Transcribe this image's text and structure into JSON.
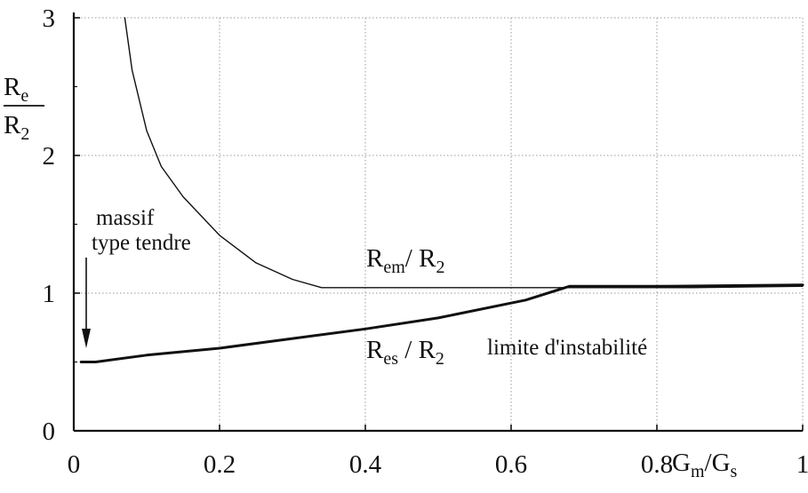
{
  "chart_data": {
    "type": "line",
    "xlim": [
      0,
      1
    ],
    "ylim": [
      0,
      3
    ],
    "x_ticks": [
      "0",
      "0.2",
      "0.4",
      "0.6",
      "0.8",
      "1"
    ],
    "y_ticks": [
      "0",
      "1",
      "2",
      "3"
    ],
    "grid": true,
    "xlabel": {
      "a": "G",
      "a_sub": "m",
      "sep": "/",
      "b": "G",
      "b_sub": "s"
    },
    "ylabel": {
      "num": "R",
      "num_sub": "e",
      "den": "R",
      "den_sub": "2"
    },
    "series": [
      {
        "name": "R_em / R2",
        "label": {
          "a": "R",
          "a_sub": "em",
          "sep": "/ ",
          "b": "R",
          "b_sub": "2"
        },
        "stroke_width": 1.4,
        "x": [
          0.07,
          0.08,
          0.1,
          0.12,
          0.15,
          0.2,
          0.25,
          0.3,
          0.34,
          0.5,
          0.7,
          0.85,
          1.0
        ],
        "y": [
          3.0,
          2.62,
          2.18,
          1.92,
          1.7,
          1.42,
          1.22,
          1.1,
          1.04,
          1.04,
          1.04,
          1.04,
          1.05
        ]
      },
      {
        "name": "R_es / R2",
        "label": {
          "a": "R",
          "a_sub": "es",
          "sep": " / ",
          "b": "R",
          "b_sub": "2",
          "extra": "limite d'instabilité"
        },
        "stroke_width": 3,
        "x": [
          0.01,
          0.03,
          0.1,
          0.2,
          0.3,
          0.4,
          0.5,
          0.62,
          0.68,
          0.8,
          1.0
        ],
        "y": [
          0.5,
          0.5,
          0.55,
          0.6,
          0.67,
          0.74,
          0.82,
          0.95,
          1.05,
          1.05,
          1.06
        ]
      }
    ],
    "annotations": [
      {
        "line1": "massif",
        "line2": "type tendre"
      }
    ]
  }
}
